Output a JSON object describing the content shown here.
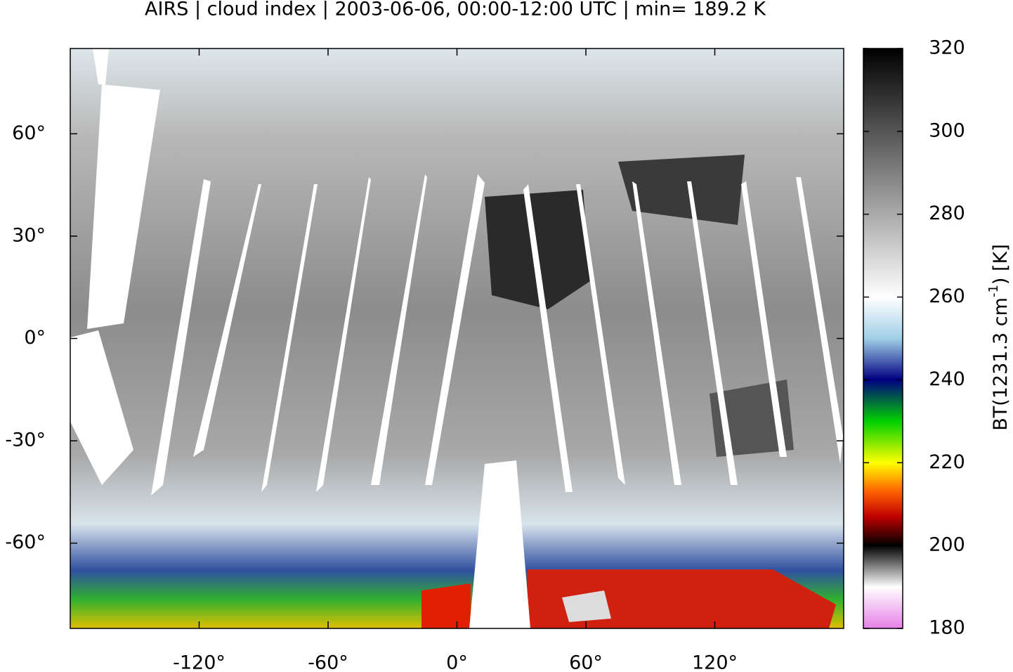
{
  "chart_data": {
    "type": "map",
    "title": "AIRS | cloud index | 2003-06-06, 00:00-12:00 UTC | min= 189.2 K",
    "xlim": [
      -180,
      180
    ],
    "ylim": [
      -85,
      85
    ],
    "xticks": [
      {
        "value": -120,
        "label": "-120°"
      },
      {
        "value": -60,
        "label": "-60°"
      },
      {
        "value": 0,
        "label": "0°"
      },
      {
        "value": 60,
        "label": "60°"
      },
      {
        "value": 120,
        "label": "120°"
      }
    ],
    "yticks": [
      {
        "value": 60,
        "label": "60°"
      },
      {
        "value": 30,
        "label": "30°"
      },
      {
        "value": 0,
        "label": "0°"
      },
      {
        "value": -30,
        "label": "-30°"
      },
      {
        "value": -60,
        "label": "-60°"
      }
    ],
    "colorbar": {
      "label": "BT(1231.3 cm",
      "label_superscript": "-1",
      "label_suffix": ") [K]",
      "clim": [
        180,
        320
      ],
      "ticks": [
        180,
        200,
        220,
        240,
        260,
        280,
        300,
        320
      ],
      "colormap": [
        {
          "value": 180,
          "color": "#e680e6"
        },
        {
          "value": 190,
          "color": "#ffffff"
        },
        {
          "value": 200,
          "color": "#000000"
        },
        {
          "value": 207,
          "color": "#c00000"
        },
        {
          "value": 213,
          "color": "#ff6000"
        },
        {
          "value": 220,
          "color": "#ffff00"
        },
        {
          "value": 230,
          "color": "#00d000"
        },
        {
          "value": 240,
          "color": "#000080"
        },
        {
          "value": 250,
          "color": "#a0d0e8"
        },
        {
          "value": 260,
          "color": "#ffffff"
        },
        {
          "value": 320,
          "color": "#000000"
        }
      ]
    }
  }
}
